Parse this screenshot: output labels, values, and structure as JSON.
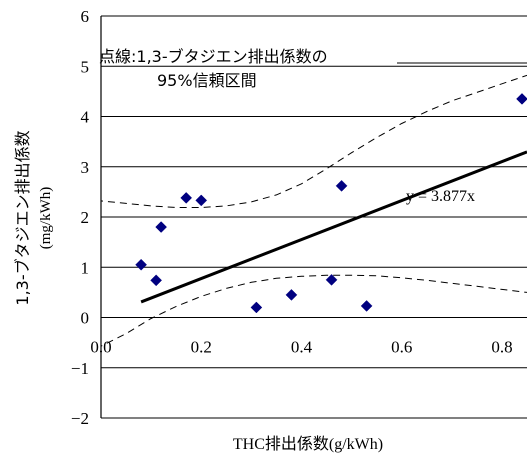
{
  "chart_data": {
    "type": "scatter",
    "xlabel": "THC排出係数(g/kWh)",
    "ylabel_line1": "1,3-ブタジエン排出係数",
    "ylabel_line2": "(mg/kWh)",
    "xlim": [
      0,
      0.85
    ],
    "ylim": [
      -2,
      6
    ],
    "x_ticks": [
      0,
      0.2,
      0.4,
      0.6,
      0.8
    ],
    "x_tick_labels": [
      "0.0",
      "0.2",
      "0.4",
      "0.6",
      "0.8"
    ],
    "y_ticks": [
      -2,
      -1,
      0,
      1,
      2,
      3,
      4,
      5,
      6
    ],
    "grid": "horizontal",
    "series": [
      {
        "marker": "diamond",
        "color": "#000080",
        "points": [
          {
            "x": 0.08,
            "y": 1.05
          },
          {
            "x": 0.11,
            "y": 0.74
          },
          {
            "x": 0.12,
            "y": 1.8
          },
          {
            "x": 0.17,
            "y": 2.38
          },
          {
            "x": 0.2,
            "y": 2.33
          },
          {
            "x": 0.31,
            "y": 0.2
          },
          {
            "x": 0.38,
            "y": 0.45
          },
          {
            "x": 0.46,
            "y": 0.75
          },
          {
            "x": 0.48,
            "y": 2.62
          },
          {
            "x": 0.53,
            "y": 0.23
          },
          {
            "x": 0.84,
            "y": 4.35
          }
        ]
      }
    ],
    "regression": {
      "slope": 3.877,
      "x_range": [
        0.08,
        0.85
      ],
      "label": "y = 3.877x"
    },
    "confidence_band": {
      "upper": [
        {
          "x": -0.01,
          "y": 2.33
        },
        {
          "x": 0.05,
          "y": 2.27
        },
        {
          "x": 0.1,
          "y": 2.22
        },
        {
          "x": 0.15,
          "y": 2.19
        },
        {
          "x": 0.2,
          "y": 2.19
        },
        {
          "x": 0.25,
          "y": 2.22
        },
        {
          "x": 0.3,
          "y": 2.3
        },
        {
          "x": 0.35,
          "y": 2.44
        },
        {
          "x": 0.4,
          "y": 2.66
        },
        {
          "x": 0.45,
          "y": 2.96
        },
        {
          "x": 0.5,
          "y": 3.28
        },
        {
          "x": 0.55,
          "y": 3.58
        },
        {
          "x": 0.6,
          "y": 3.86
        },
        {
          "x": 0.65,
          "y": 4.1
        },
        {
          "x": 0.7,
          "y": 4.31
        },
        {
          "x": 0.75,
          "y": 4.48
        },
        {
          "x": 0.8,
          "y": 4.65
        },
        {
          "x": 0.85,
          "y": 4.82
        }
      ],
      "lower": [
        {
          "x": -0.01,
          "y": -0.62
        },
        {
          "x": 0.05,
          "y": -0.32
        },
        {
          "x": 0.1,
          "y": -0.02
        },
        {
          "x": 0.15,
          "y": 0.22
        },
        {
          "x": 0.2,
          "y": 0.42
        },
        {
          "x": 0.25,
          "y": 0.58
        },
        {
          "x": 0.3,
          "y": 0.7
        },
        {
          "x": 0.35,
          "y": 0.78
        },
        {
          "x": 0.4,
          "y": 0.82
        },
        {
          "x": 0.45,
          "y": 0.84
        },
        {
          "x": 0.5,
          "y": 0.84
        },
        {
          "x": 0.55,
          "y": 0.83
        },
        {
          "x": 0.6,
          "y": 0.79
        },
        {
          "x": 0.65,
          "y": 0.74
        },
        {
          "x": 0.7,
          "y": 0.68
        },
        {
          "x": 0.75,
          "y": 0.62
        },
        {
          "x": 0.8,
          "y": 0.56
        },
        {
          "x": 0.85,
          "y": 0.5
        }
      ]
    },
    "annotation_line1": "点線:1,3-ブタジエン排出係数の",
    "annotation_line2": "95%信頼区間"
  }
}
